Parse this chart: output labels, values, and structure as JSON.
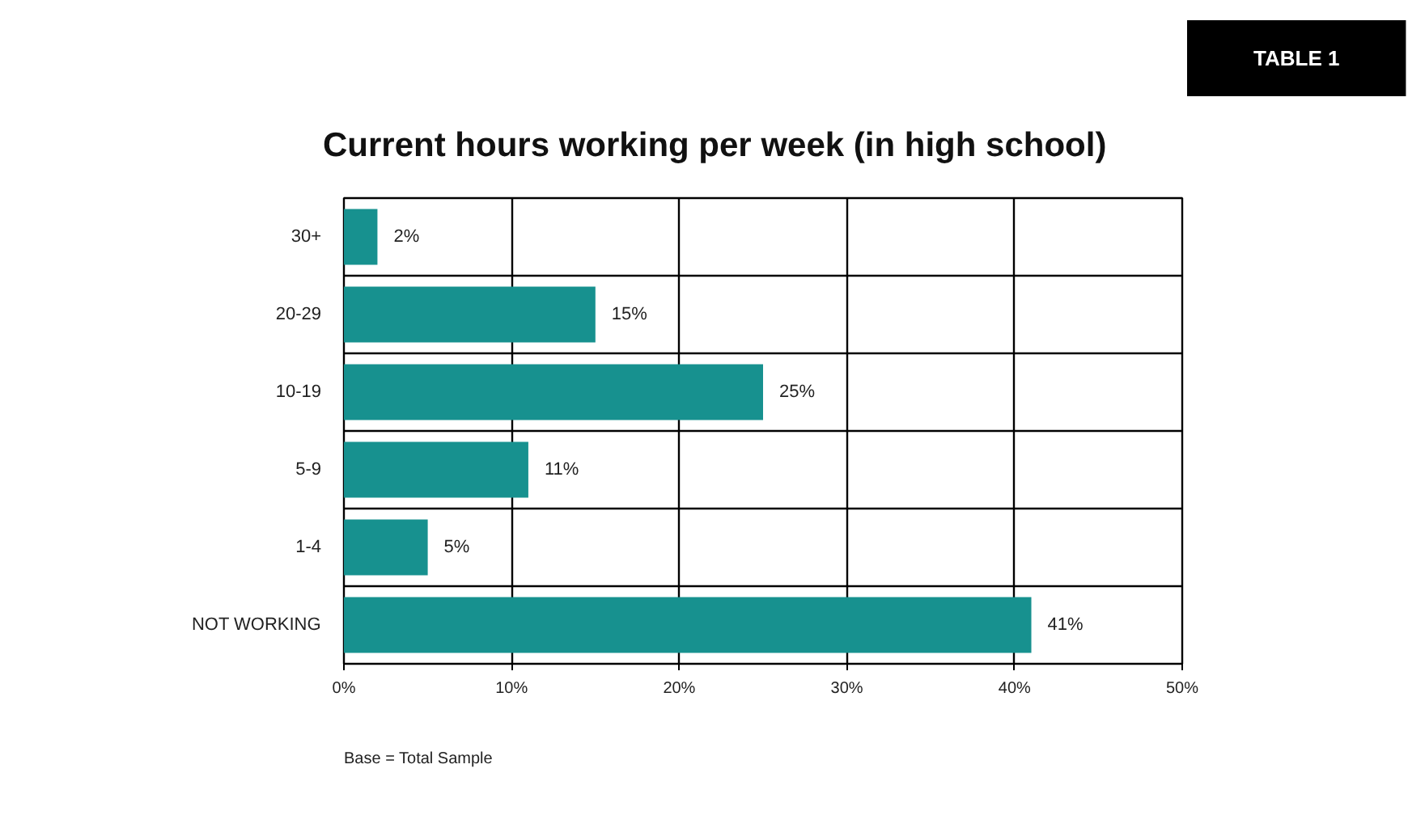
{
  "chart_data": {
    "type": "bar",
    "orientation": "horizontal",
    "title": "Current hours working per week (in high school)",
    "categories": [
      "30+",
      "20-29",
      "10-19",
      "5-9",
      "1-4",
      "NOT WORKING"
    ],
    "values": [
      2,
      15,
      25,
      11,
      5,
      41
    ],
    "value_labels": [
      "2%",
      "15%",
      "25%",
      "11%",
      "5%",
      "41%"
    ],
    "color": "#17918f",
    "xlim": [
      0,
      50
    ],
    "xticks": [
      {
        "value": 0,
        "label": "0%"
      },
      {
        "value": 10,
        "label": "10%"
      },
      {
        "value": 20,
        "label": "20%"
      },
      {
        "value": 30,
        "label": "30%"
      },
      {
        "value": 40,
        "label": "40%"
      },
      {
        "value": 50,
        "label": "50%"
      }
    ],
    "grid": true,
    "annotations": [
      "TABLE 1",
      "Base = Total Sample"
    ]
  }
}
